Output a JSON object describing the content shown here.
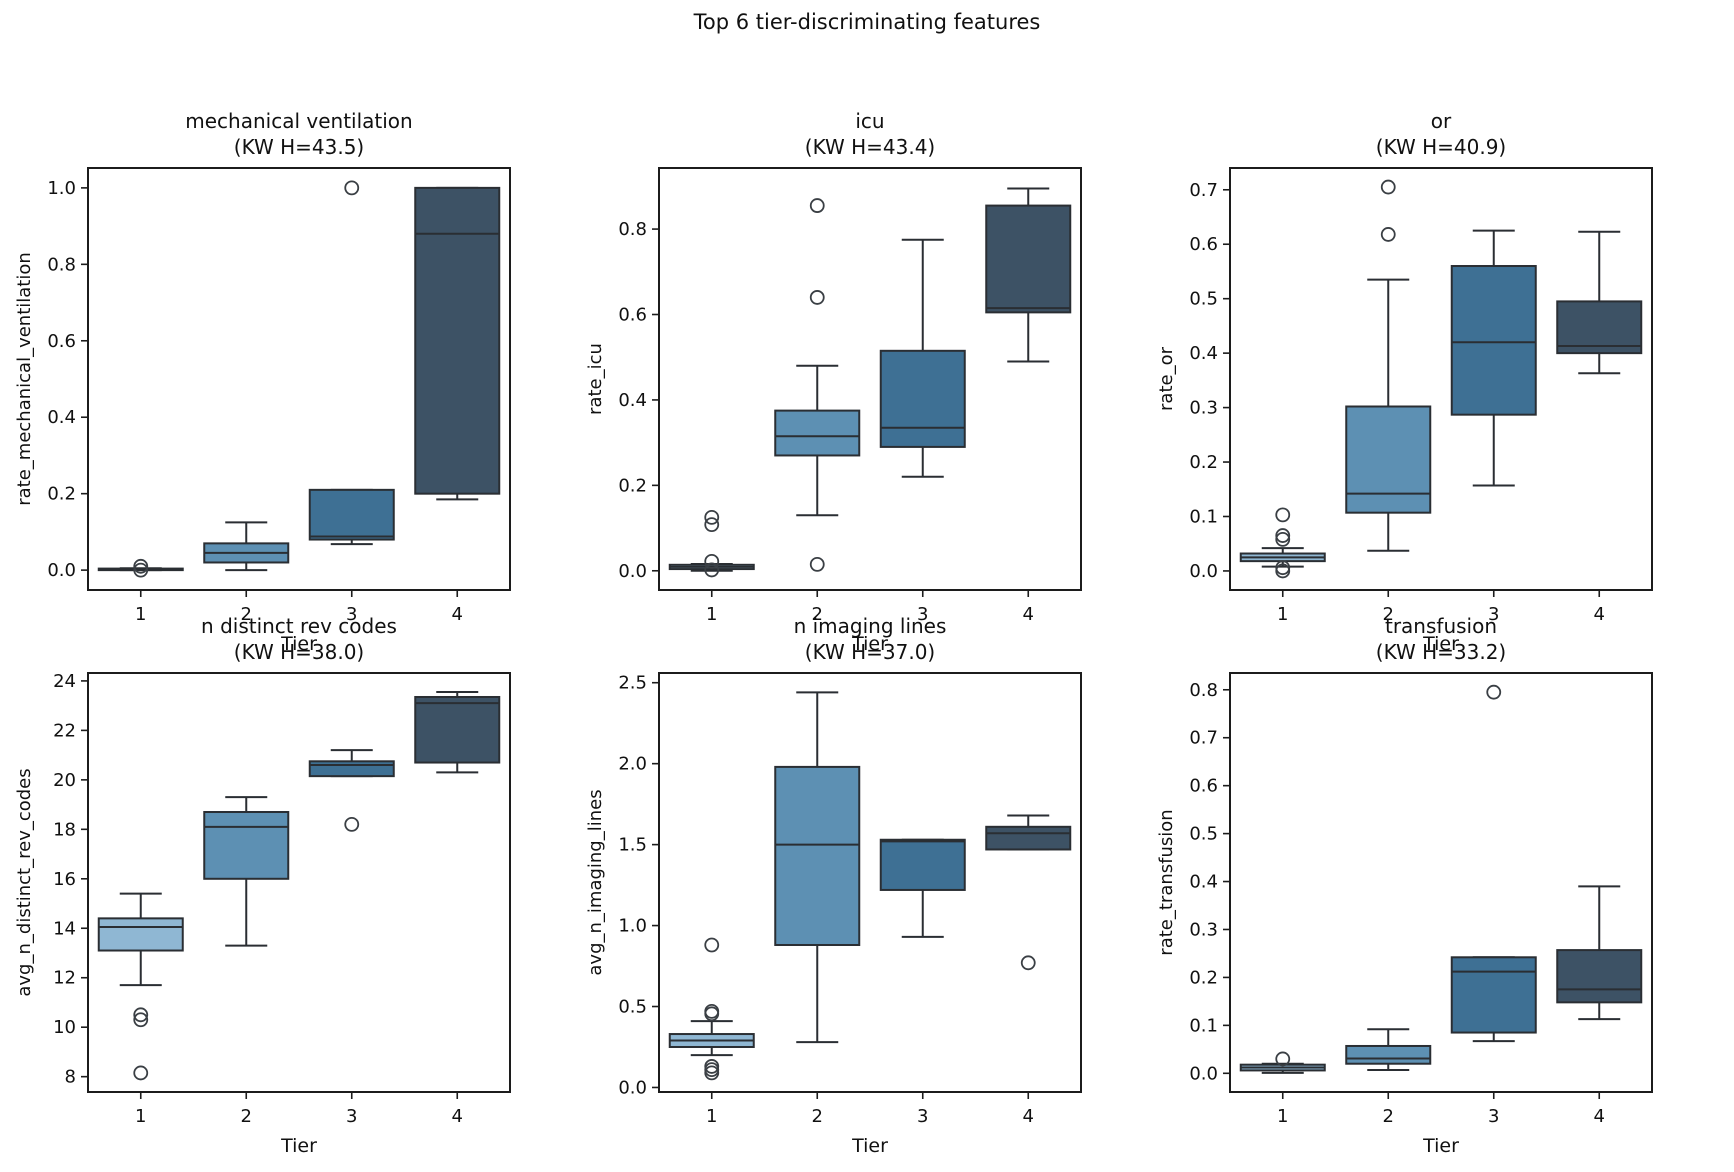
{
  "figure": {
    "title": "Top 6 tier-discriminating features",
    "xlabel": "Tier",
    "palette": [
      "#8fb7d3",
      "#5d90b3",
      "#3e7094",
      "#3d5265"
    ],
    "edge_color": "#2a2e33",
    "spine_color": "#1c1c1c",
    "text_color": "#111111"
  },
  "chart_data": [
    {
      "type": "box",
      "title": "mechanical ventilation",
      "subtitle": "(KW H=43.5)",
      "xlabel": "Tier",
      "ylabel": "rate_mechanical_ventilation",
      "categories": [
        "1",
        "2",
        "3",
        "4"
      ],
      "ylim": [
        -0.052,
        1.052
      ],
      "yticks": [
        0.0,
        0.2,
        0.4,
        0.6,
        0.8,
        1.0
      ],
      "ydecimals": 1,
      "boxes": [
        {
          "tier": "1",
          "q1": 0.0,
          "median": 0.002,
          "q3": 0.004,
          "whisker_low": 0.0,
          "whisker_high": 0.005,
          "outliers": [
            0.01,
            0.0
          ]
        },
        {
          "tier": "2",
          "q1": 0.02,
          "median": 0.045,
          "q3": 0.07,
          "whisker_low": 0.0,
          "whisker_high": 0.125,
          "outliers": []
        },
        {
          "tier": "3",
          "q1": 0.08,
          "median": 0.088,
          "q3": 0.21,
          "whisker_low": 0.068,
          "whisker_high": 0.21,
          "outliers": [
            1.0
          ]
        },
        {
          "tier": "4",
          "q1": 0.2,
          "median": 0.88,
          "q3": 1.0,
          "whisker_low": 0.185,
          "whisker_high": 1.0,
          "outliers": []
        }
      ]
    },
    {
      "type": "box",
      "title": "icu",
      "subtitle": "(KW H=43.4)",
      "xlabel": "Tier",
      "ylabel": "rate_icu",
      "categories": [
        "1",
        "2",
        "3",
        "4"
      ],
      "ylim": [
        -0.045,
        0.943
      ],
      "yticks": [
        0.0,
        0.2,
        0.4,
        0.6,
        0.8
      ],
      "ydecimals": 1,
      "boxes": [
        {
          "tier": "1",
          "q1": 0.004,
          "median": 0.009,
          "q3": 0.014,
          "whisker_low": 0.0,
          "whisker_high": 0.016,
          "outliers": [
            0.125,
            0.108,
            0.022,
            0.002
          ]
        },
        {
          "tier": "2",
          "q1": 0.27,
          "median": 0.315,
          "q3": 0.375,
          "whisker_low": 0.13,
          "whisker_high": 0.48,
          "outliers": [
            0.855,
            0.64,
            0.015
          ]
        },
        {
          "tier": "3",
          "q1": 0.29,
          "median": 0.335,
          "q3": 0.515,
          "whisker_low": 0.22,
          "whisker_high": 0.775,
          "outliers": []
        },
        {
          "tier": "4",
          "q1": 0.605,
          "median": 0.615,
          "q3": 0.855,
          "whisker_low": 0.49,
          "whisker_high": 0.895,
          "outliers": []
        }
      ]
    },
    {
      "type": "box",
      "title": "or",
      "subtitle": "(KW H=40.9)",
      "xlabel": "Tier",
      "ylabel": "rate_or",
      "categories": [
        "1",
        "2",
        "3",
        "4"
      ],
      "ylim": [
        -0.035,
        0.74
      ],
      "yticks": [
        0.0,
        0.1,
        0.2,
        0.3,
        0.4,
        0.5,
        0.6,
        0.7
      ],
      "ydecimals": 1,
      "boxes": [
        {
          "tier": "1",
          "q1": 0.018,
          "median": 0.025,
          "q3": 0.032,
          "whisker_low": 0.008,
          "whisker_high": 0.042,
          "outliers": [
            0.103,
            0.065,
            0.058,
            0.006,
            0.0
          ]
        },
        {
          "tier": "2",
          "q1": 0.107,
          "median": 0.142,
          "q3": 0.302,
          "whisker_low": 0.037,
          "whisker_high": 0.535,
          "outliers": [
            0.705,
            0.618
          ]
        },
        {
          "tier": "3",
          "q1": 0.287,
          "median": 0.42,
          "q3": 0.56,
          "whisker_low": 0.157,
          "whisker_high": 0.625,
          "outliers": []
        },
        {
          "tier": "4",
          "q1": 0.4,
          "median": 0.413,
          "q3": 0.495,
          "whisker_low": 0.363,
          "whisker_high": 0.623,
          "outliers": []
        }
      ]
    },
    {
      "type": "box",
      "title": "n distinct rev codes",
      "subtitle": "(KW H=38.0)",
      "xlabel": "Tier",
      "ylabel": "avg_n_distinct_rev_codes",
      "categories": [
        "1",
        "2",
        "3",
        "4"
      ],
      "ylim": [
        7.38,
        24.32
      ],
      "yticks": [
        8,
        10,
        12,
        14,
        16,
        18,
        20,
        22,
        24
      ],
      "ydecimals": 0,
      "boxes": [
        {
          "tier": "1",
          "q1": 13.1,
          "median": 14.05,
          "q3": 14.4,
          "whisker_low": 11.7,
          "whisker_high": 15.4,
          "outliers": [
            10.5,
            10.3,
            8.15
          ]
        },
        {
          "tier": "2",
          "q1": 16.0,
          "median": 18.1,
          "q3": 18.7,
          "whisker_low": 13.3,
          "whisker_high": 19.3,
          "outliers": []
        },
        {
          "tier": "3",
          "q1": 20.15,
          "median": 20.6,
          "q3": 20.75,
          "whisker_low": 20.15,
          "whisker_high": 21.2,
          "outliers": [
            18.2
          ]
        },
        {
          "tier": "4",
          "q1": 20.7,
          "median": 23.1,
          "q3": 23.35,
          "whisker_low": 20.3,
          "whisker_high": 23.55,
          "outliers": []
        }
      ]
    },
    {
      "type": "box",
      "title": "n imaging lines",
      "subtitle": "(KW H=37.0)",
      "xlabel": "Tier",
      "ylabel": "avg_n_imaging_lines",
      "categories": [
        "1",
        "2",
        "3",
        "4"
      ],
      "ylim": [
        -0.028,
        2.56
      ],
      "yticks": [
        0.0,
        0.5,
        1.0,
        1.5,
        2.0,
        2.5
      ],
      "ydecimals": 1,
      "boxes": [
        {
          "tier": "1",
          "q1": 0.25,
          "median": 0.29,
          "q3": 0.33,
          "whisker_low": 0.2,
          "whisker_high": 0.41,
          "outliers": [
            0.88,
            0.47,
            0.455,
            0.13,
            0.11,
            0.09
          ]
        },
        {
          "tier": "2",
          "q1": 0.88,
          "median": 1.5,
          "q3": 1.98,
          "whisker_low": 0.28,
          "whisker_high": 2.44,
          "outliers": []
        },
        {
          "tier": "3",
          "q1": 1.22,
          "median": 1.52,
          "q3": 1.53,
          "whisker_low": 0.93,
          "whisker_high": 1.53,
          "outliers": []
        },
        {
          "tier": "4",
          "q1": 1.47,
          "median": 1.57,
          "q3": 1.61,
          "whisker_low": 1.47,
          "whisker_high": 1.68,
          "outliers": [
            0.77
          ]
        }
      ]
    },
    {
      "type": "box",
      "title": "transfusion",
      "subtitle": "(KW H=33.2)",
      "xlabel": "Tier",
      "ylabel": "rate_transfusion",
      "categories": [
        "1",
        "2",
        "3",
        "4"
      ],
      "ylim": [
        -0.039,
        0.835
      ],
      "yticks": [
        0.0,
        0.1,
        0.2,
        0.3,
        0.4,
        0.5,
        0.6,
        0.7,
        0.8
      ],
      "ydecimals": 1,
      "boxes": [
        {
          "tier": "1",
          "q1": 0.006,
          "median": 0.012,
          "q3": 0.018,
          "whisker_low": 0.001,
          "whisker_high": 0.02,
          "outliers": [
            0.03
          ]
        },
        {
          "tier": "2",
          "q1": 0.02,
          "median": 0.031,
          "q3": 0.057,
          "whisker_low": 0.007,
          "whisker_high": 0.092,
          "outliers": []
        },
        {
          "tier": "3",
          "q1": 0.085,
          "median": 0.212,
          "q3": 0.242,
          "whisker_low": 0.067,
          "whisker_high": 0.242,
          "outliers": [
            0.795
          ]
        },
        {
          "tier": "4",
          "q1": 0.148,
          "median": 0.175,
          "q3": 0.257,
          "whisker_low": 0.113,
          "whisker_high": 0.39,
          "outliers": []
        }
      ]
    }
  ]
}
